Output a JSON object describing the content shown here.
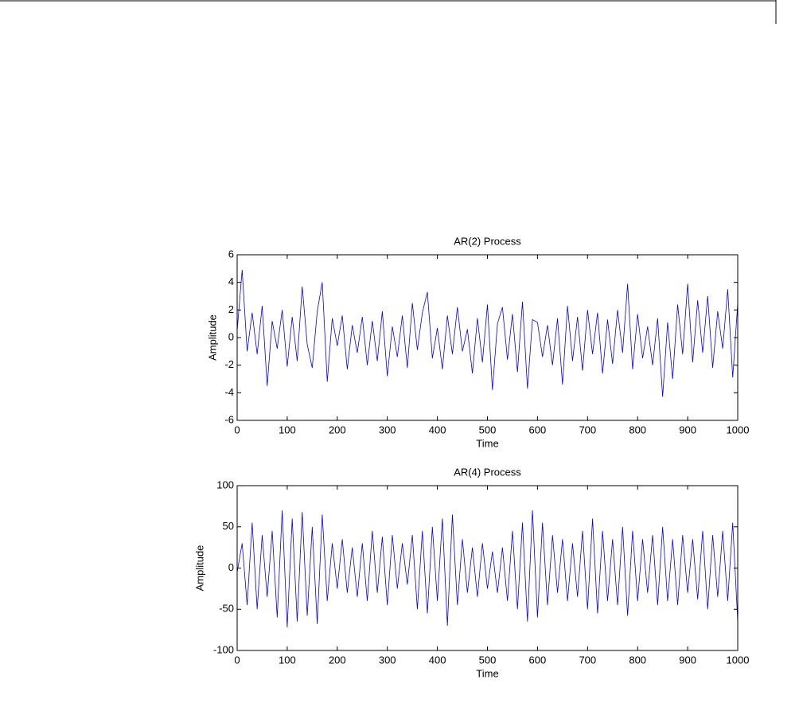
{
  "chart_data": [
    {
      "type": "line",
      "title": "AR(2) Process",
      "xlabel": "Time",
      "ylabel": "Amplitude",
      "x": [
        0,
        10,
        20,
        30,
        40,
        50,
        60,
        70,
        80,
        90,
        100,
        110,
        120,
        130,
        140,
        150,
        160,
        170,
        180,
        190,
        200,
        210,
        220,
        230,
        240,
        250,
        260,
        270,
        280,
        290,
        300,
        310,
        320,
        330,
        340,
        350,
        360,
        370,
        380,
        390,
        400,
        410,
        420,
        430,
        440,
        450,
        460,
        470,
        480,
        490,
        500,
        510,
        520,
        530,
        540,
        550,
        560,
        570,
        580,
        590,
        600,
        610,
        620,
        630,
        640,
        650,
        660,
        670,
        680,
        690,
        700,
        710,
        720,
        730,
        740,
        750,
        760,
        770,
        780,
        790,
        800,
        810,
        820,
        830,
        840,
        850,
        860,
        870,
        880,
        890,
        900,
        910,
        920,
        930,
        940,
        950,
        960,
        970,
        980,
        990,
        1000
      ],
      "series": [
        {
          "color": "#0000ff",
          "values": [
            0.5,
            4.9,
            -1.0,
            1.8,
            -1.2,
            2.3,
            -3.5,
            1.2,
            -0.8,
            2.0,
            -2.1,
            1.5,
            -1.7,
            3.7,
            -0.5,
            -2.2,
            1.9,
            4.0,
            -3.2,
            1.4,
            -0.6,
            1.6,
            -2.3,
            0.9,
            -1.1,
            1.5,
            -2.0,
            1.2,
            -1.7,
            1.9,
            -2.8,
            0.8,
            -1.4,
            1.6,
            -2.2,
            2.5,
            -0.9,
            1.8,
            3.3,
            -1.5,
            0.7,
            -2.3,
            1.6,
            -1.2,
            2.2,
            -1.0,
            0.6,
            -2.6,
            1.4,
            -1.8,
            2.4,
            -3.8,
            1.0,
            2.2,
            -1.6,
            1.7,
            -2.5,
            2.6,
            -3.7,
            1.3,
            1.1,
            -1.4,
            0.9,
            -2.0,
            1.4,
            -3.4,
            2.3,
            -1.7,
            1.5,
            -2.4,
            2.0,
            -1.2,
            1.8,
            -2.6,
            1.3,
            -1.9,
            2.0,
            -1.1,
            3.9,
            -2.3,
            1.7,
            -1.5,
            0.8,
            -2.0,
            1.4,
            -4.3,
            1.1,
            -3.0,
            2.4,
            -1.2,
            3.9,
            -1.8,
            2.7,
            -1.1,
            3.0,
            -2.2,
            1.9,
            -0.8,
            3.5,
            -2.9,
            2.5
          ]
        }
      ],
      "xlim": [
        0,
        1000
      ],
      "ylim": [
        -6,
        6
      ],
      "xticks": [
        0,
        100,
        200,
        300,
        400,
        500,
        600,
        700,
        800,
        900,
        1000
      ],
      "yticks": [
        -6,
        -4,
        -2,
        0,
        2,
        4,
        6
      ]
    },
    {
      "type": "line",
      "title": "AR(4) Process",
      "xlabel": "Time",
      "ylabel": "Amplitude",
      "x": [
        0,
        10,
        20,
        30,
        40,
        50,
        60,
        70,
        80,
        90,
        100,
        110,
        120,
        130,
        140,
        150,
        160,
        170,
        180,
        190,
        200,
        210,
        220,
        230,
        240,
        250,
        260,
        270,
        280,
        290,
        300,
        310,
        320,
        330,
        340,
        350,
        360,
        370,
        380,
        390,
        400,
        410,
        420,
        430,
        440,
        450,
        460,
        470,
        480,
        490,
        500,
        510,
        520,
        530,
        540,
        550,
        560,
        570,
        580,
        590,
        600,
        610,
        620,
        630,
        640,
        650,
        660,
        670,
        680,
        690,
        700,
        710,
        720,
        730,
        740,
        750,
        760,
        770,
        780,
        790,
        800,
        810,
        820,
        830,
        840,
        850,
        860,
        870,
        880,
        890,
        900,
        910,
        920,
        930,
        940,
        950,
        960,
        970,
        980,
        990,
        1000
      ],
      "series": [
        {
          "color": "#0000ff",
          "values": [
            -5,
            30,
            -45,
            55,
            -50,
            40,
            -35,
            45,
            -60,
            70,
            -72,
            60,
            -65,
            68,
            -58,
            50,
            -68,
            65,
            -40,
            30,
            -25,
            35,
            -30,
            25,
            -35,
            30,
            -40,
            45,
            -30,
            38,
            -45,
            40,
            -25,
            30,
            -20,
            40,
            -50,
            45,
            -55,
            50,
            -40,
            60,
            -70,
            65,
            -45,
            35,
            -30,
            25,
            -35,
            30,
            -25,
            20,
            -30,
            25,
            -40,
            45,
            -50,
            55,
            -65,
            70,
            -60,
            55,
            -45,
            40,
            -30,
            35,
            -40,
            30,
            -35,
            45,
            -50,
            60,
            -55,
            45,
            -40,
            35,
            -45,
            50,
            -58,
            45,
            -40,
            35,
            -30,
            40,
            -45,
            50,
            -40,
            35,
            -45,
            40,
            -30,
            35,
            -38,
            45,
            -50,
            40,
            -35,
            45,
            -40,
            55,
            -65
          ]
        }
      ],
      "xlim": [
        0,
        1000
      ],
      "ylim": [
        -100,
        100
      ],
      "xticks": [
        0,
        100,
        200,
        300,
        400,
        500,
        600,
        700,
        800,
        900,
        1000
      ],
      "yticks": [
        -100,
        -50,
        0,
        50,
        100
      ]
    }
  ]
}
